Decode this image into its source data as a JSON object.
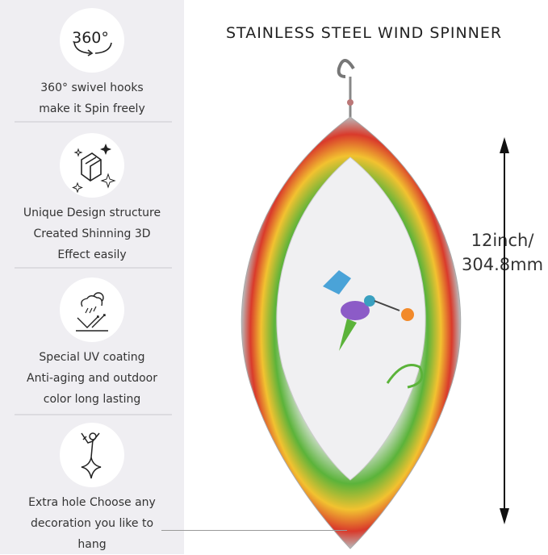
{
  "title": "STAINLESS STEEL WIND SPINNER",
  "dimension": {
    "line1": "12inch/",
    "line2": "304.8mm"
  },
  "features": [
    {
      "icon": "360-rotate-icon",
      "badge": "360°",
      "lines": [
        "360° swivel hooks",
        "make it Spin freely"
      ]
    },
    {
      "icon": "3d-cube-sparkle-icon",
      "lines": [
        "Unique Design structure",
        "Created Shinning 3D",
        "Effect easily"
      ]
    },
    {
      "icon": "uv-weather-icon",
      "lines": [
        "Special UV coating",
        "Anti-aging and outdoor",
        "color long lasting"
      ]
    },
    {
      "icon": "hanging-figure-icon",
      "lines": [
        "Extra hole Choose any",
        "decoration you like to",
        "hang"
      ]
    }
  ],
  "colors": {
    "panel": "#efeef2",
    "accent_red": "#d93a2b",
    "accent_green": "#5bb33a",
    "accent_yellow": "#f2c230"
  }
}
